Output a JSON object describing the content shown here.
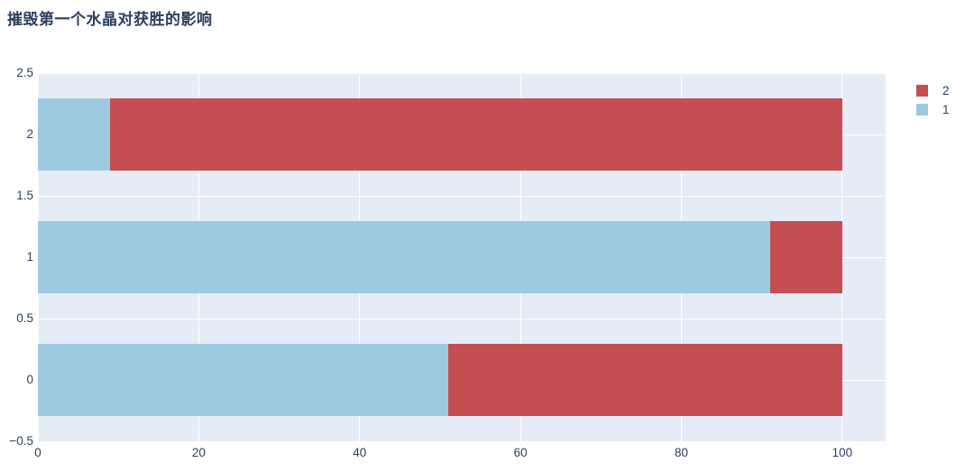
{
  "title": "摧毁第一个水晶对获胜的影响",
  "colors": {
    "plot_background": "#e5ecf6",
    "gridline": "#ffffff",
    "text": "#2a3f5f",
    "series_1_blue": "#9ecae1",
    "series_2_red": "#c44e52"
  },
  "chart_data": {
    "type": "bar",
    "orientation": "horizontal",
    "stacked": true,
    "title": "摧毁第一个水晶对获胜的影响",
    "categories": [
      0,
      1,
      2
    ],
    "series": [
      {
        "name": "1",
        "color": "#9ecae1",
        "values": [
          51,
          91,
          9
        ]
      },
      {
        "name": "2",
        "color": "#c44e52",
        "values": [
          49,
          9,
          91
        ]
      }
    ],
    "xlabel": "",
    "ylabel": "",
    "xlim": [
      0,
      105.4
    ],
    "ylim": [
      -0.5,
      2.5
    ],
    "grid": true,
    "x_axis": {
      "tick_values": [
        0,
        20,
        40,
        60,
        80,
        100
      ],
      "tick_labels": [
        "0",
        "20",
        "40",
        "60",
        "80",
        "100"
      ]
    },
    "y_axis": {
      "tick_values": [
        -0.5,
        0,
        0.5,
        1,
        1.5,
        2,
        2.5
      ],
      "tick_labels": [
        "−0.5",
        "0",
        "0.5",
        "1",
        "1.5",
        "2",
        "2.5"
      ]
    },
    "legend": {
      "position": "top-right-outside",
      "entries": [
        {
          "label": "2",
          "color": "#c44e52"
        },
        {
          "label": "1",
          "color": "#9ecae1"
        }
      ]
    }
  }
}
